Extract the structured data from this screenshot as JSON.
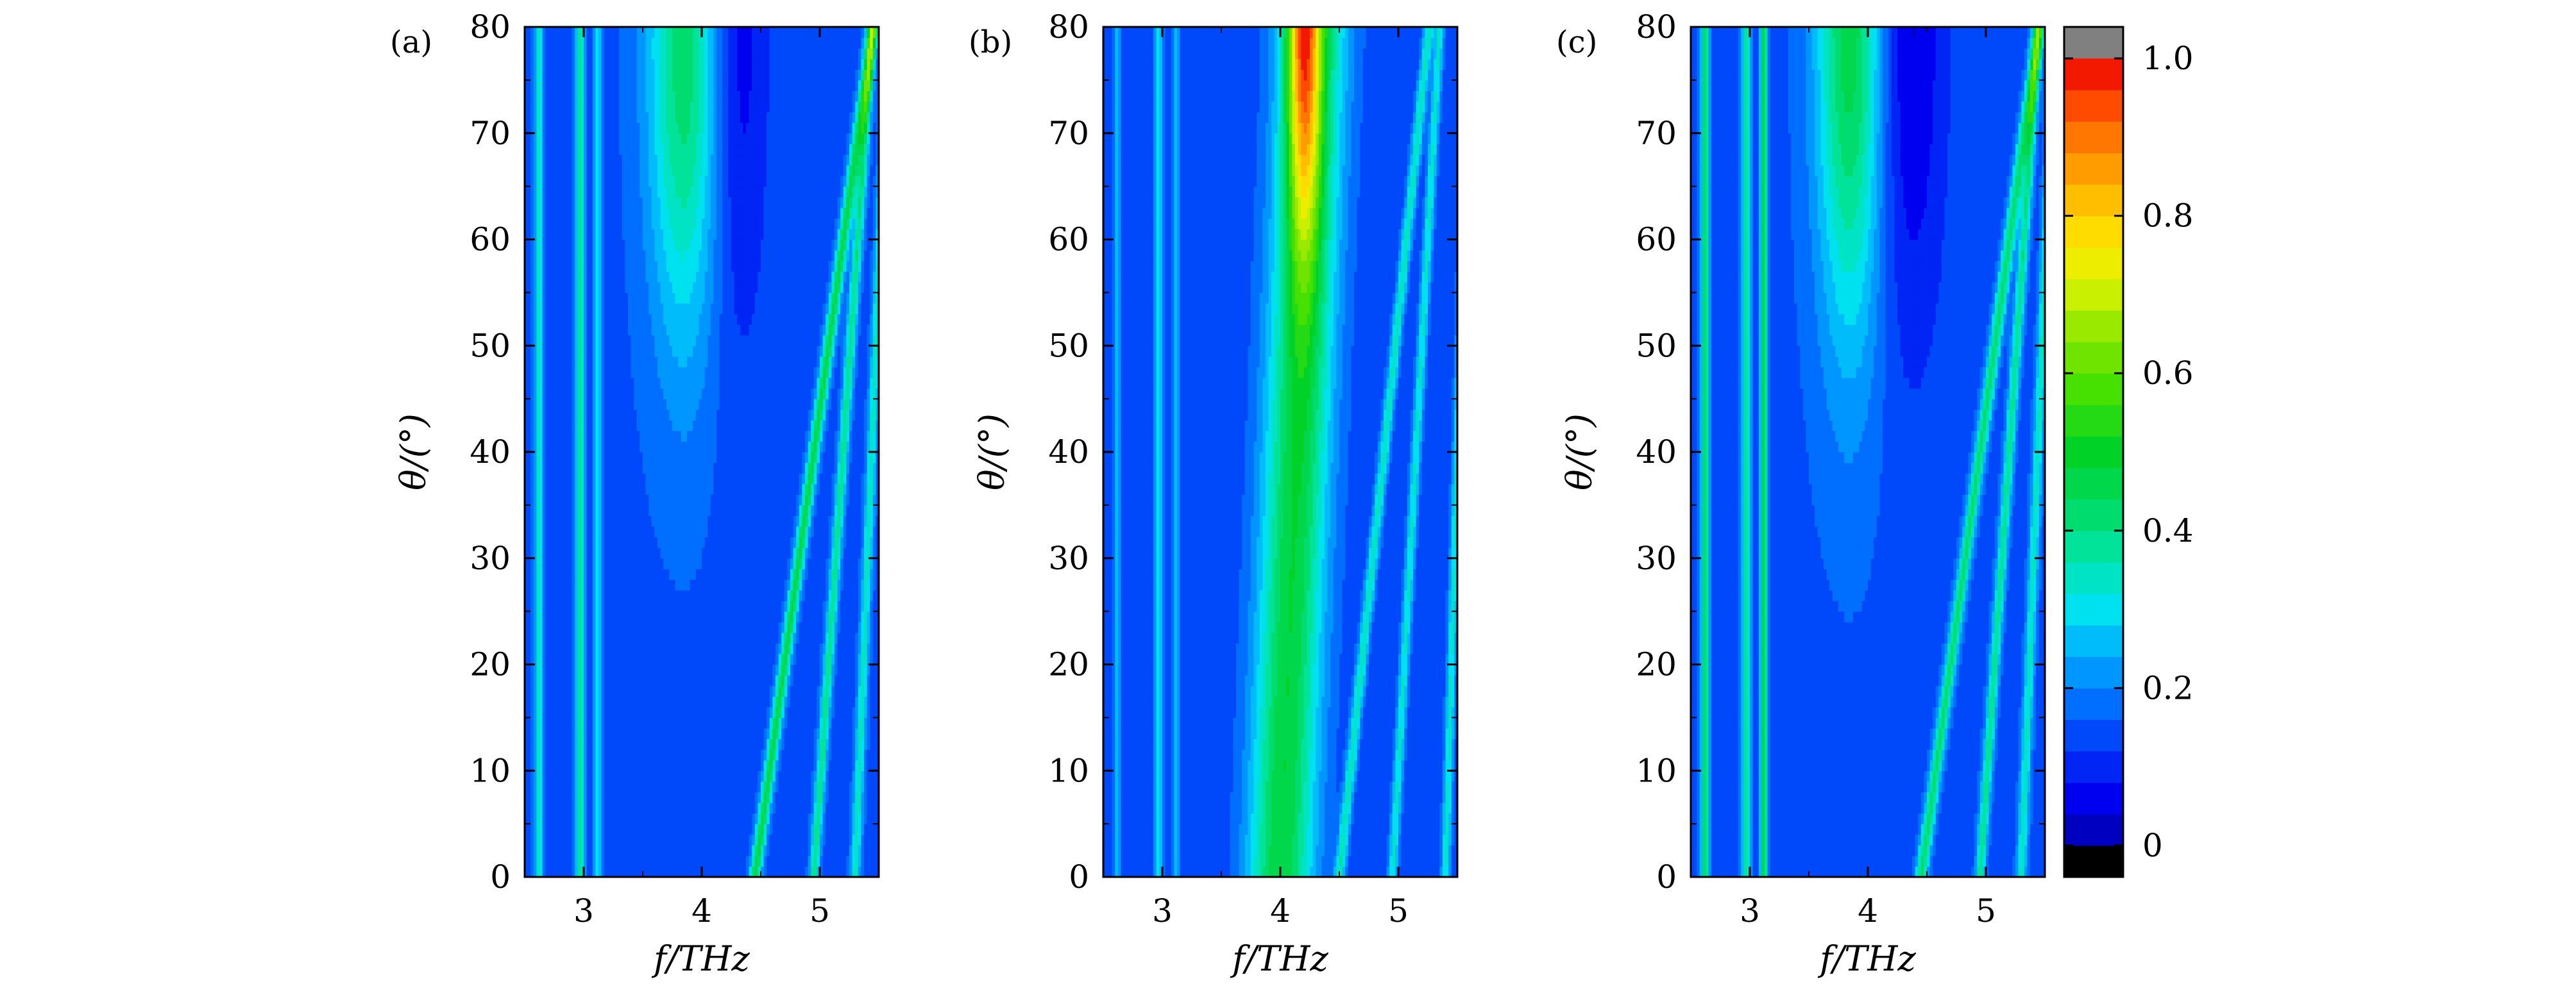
{
  "figure": {
    "panels": [
      {
        "label": "(a)",
        "xlabel": "f/THz",
        "ylabel": "θ/(°)",
        "xlim": [
          2.5,
          5.5
        ],
        "ylim": [
          0,
          80
        ],
        "xticks": [
          3,
          4,
          5
        ],
        "yticks": [
          0,
          10,
          20,
          30,
          40,
          50,
          60,
          70,
          80
        ]
      },
      {
        "label": "(b)",
        "xlabel": "f/THz",
        "ylabel": "θ/(°)",
        "xlim": [
          2.5,
          5.5
        ],
        "ylim": [
          0,
          80
        ],
        "xticks": [
          3,
          4,
          5
        ],
        "yticks": [
          0,
          10,
          20,
          30,
          40,
          50,
          60,
          70,
          80
        ]
      },
      {
        "label": "(c)",
        "xlabel": "f/THz",
        "ylabel": "θ/(°)",
        "xlim": [
          2.5,
          5.5
        ],
        "ylim": [
          0,
          80
        ],
        "xticks": [
          3,
          4,
          5
        ],
        "yticks": [
          0,
          10,
          20,
          30,
          40,
          50,
          60,
          70,
          80
        ]
      }
    ],
    "colorbar": {
      "ticks": [
        "0",
        "0.2",
        "0.4",
        "0.6",
        "0.8",
        "1.0"
      ],
      "tick_values": [
        0,
        0.2,
        0.4,
        0.6,
        0.8,
        1.0
      ],
      "range": [
        -0.04,
        1.04
      ],
      "under_color": "#000000",
      "over_color": "#808080",
      "levels": 25
    }
  },
  "chart_data": [
    {
      "type": "heatmap",
      "panel": "(a)",
      "xlabel": "f/THz",
      "ylabel": "θ/(°)",
      "xlim": [
        2.5,
        5.5
      ],
      "ylim": [
        0,
        80
      ],
      "zlim": [
        0,
        1
      ],
      "background": 0.15,
      "features": [
        {
          "kind": "line",
          "f0": 2.62,
          "slope": 0.0,
          "width": 0.035,
          "amp": 0.18
        },
        {
          "kind": "line",
          "f0": 2.97,
          "slope": 0.0,
          "width": 0.035,
          "amp": 0.22
        },
        {
          "kind": "line",
          "f0": 3.12,
          "slope": 0.0,
          "width": 0.03,
          "amp": 0.18
        },
        {
          "kind": "blob",
          "fc": 3.85,
          "fw": 0.3,
          "tc": 78,
          "tw": 28,
          "amp": 0.28
        },
        {
          "kind": "line",
          "f0": 4.45,
          "slope": 0.0125,
          "width": 0.05,
          "amp": 0.3
        },
        {
          "kind": "line",
          "f0": 4.95,
          "slope": 0.0062,
          "width": 0.04,
          "amp": 0.25
        },
        {
          "kind": "line",
          "f0": 5.3,
          "slope": 0.0035,
          "width": 0.04,
          "amp": 0.2
        },
        {
          "kind": "dip",
          "fc": 4.3,
          "fw": 0.25,
          "tc": 80,
          "tw": 30,
          "amp": 0.1
        }
      ]
    },
    {
      "type": "heatmap",
      "panel": "(b)",
      "xlabel": "f/THz",
      "ylabel": "θ/(°)",
      "xlim": [
        2.5,
        5.5
      ],
      "ylim": [
        0,
        80
      ],
      "zlim": [
        0,
        1
      ],
      "background": 0.13,
      "features": [
        {
          "kind": "line",
          "f0": 2.62,
          "slope": 0.0,
          "width": 0.035,
          "amp": 0.12
        },
        {
          "kind": "line",
          "f0": 2.97,
          "slope": 0.0,
          "width": 0.035,
          "amp": 0.17
        },
        {
          "kind": "line",
          "f0": 3.12,
          "slope": 0.0,
          "width": 0.03,
          "amp": 0.12
        },
        {
          "kind": "band",
          "f0": 4.0,
          "slope": 0.0035,
          "width": 0.28,
          "amp": 0.35
        },
        {
          "kind": "blob",
          "fc": 4.2,
          "fw": 0.14,
          "tc": 82,
          "tw": 22,
          "amp": 0.55
        },
        {
          "kind": "line",
          "f0": 4.5,
          "slope": 0.0095,
          "width": 0.045,
          "amp": 0.22
        },
        {
          "kind": "line",
          "f0": 4.95,
          "slope": 0.005,
          "width": 0.04,
          "amp": 0.2
        },
        {
          "kind": "line",
          "f0": 5.4,
          "slope": 0.0025,
          "width": 0.04,
          "amp": 0.2
        }
      ]
    },
    {
      "type": "heatmap",
      "panel": "(c)",
      "xlabel": "f/THz",
      "ylabel": "θ/(°)",
      "xlim": [
        2.5,
        5.5
      ],
      "ylim": [
        0,
        80
      ],
      "zlim": [
        0,
        1
      ],
      "background": 0.15,
      "features": [
        {
          "kind": "line",
          "f0": 2.62,
          "slope": 0.0,
          "width": 0.035,
          "amp": 0.27
        },
        {
          "kind": "line",
          "f0": 2.97,
          "slope": 0.0,
          "width": 0.035,
          "amp": 0.25
        },
        {
          "kind": "line",
          "f0": 3.12,
          "slope": 0.0,
          "width": 0.03,
          "amp": 0.35
        },
        {
          "kind": "blob",
          "fc": 3.85,
          "fw": 0.28,
          "tc": 80,
          "tw": 30,
          "amp": 0.32
        },
        {
          "kind": "line",
          "f0": 4.45,
          "slope": 0.0125,
          "width": 0.05,
          "amp": 0.28
        },
        {
          "kind": "line",
          "f0": 4.95,
          "slope": 0.0062,
          "width": 0.04,
          "amp": 0.25
        },
        {
          "kind": "line",
          "f0": 5.3,
          "slope": 0.0035,
          "width": 0.04,
          "amp": 0.2
        },
        {
          "kind": "dip",
          "fc": 4.35,
          "fw": 0.3,
          "tc": 80,
          "tw": 30,
          "amp": 0.12
        }
      ]
    }
  ]
}
